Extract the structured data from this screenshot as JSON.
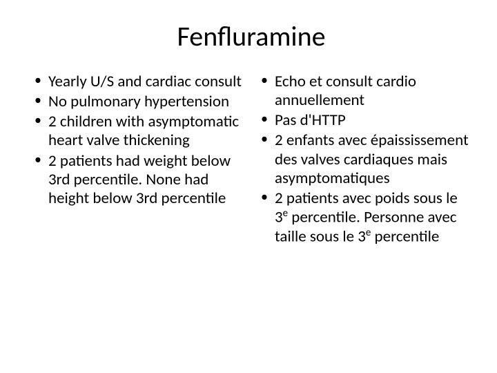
{
  "title": "Fenfluramine",
  "left": {
    "items": [
      "Yearly U/S and cardiac consult",
      "No pulmonary hypertension",
      "2 children with asymptomatic heart valve thickening",
      "2 patients had weight below 3rd percentile. None had height below 3rd percentile"
    ]
  },
  "right": {
    "items": [
      "Echo et consult cardio annuellement",
      "Pas d'HTTP",
      "2 enfants avec épaississement des valves cardiaques mais asymptomatiques",
      "2 patients avec poids sous le 3<sup>e</sup> percentile. Personne avec taille sous le 3<sup>e</sup> percentile"
    ]
  },
  "colors": {
    "background": "#ffffff",
    "text": "#000000"
  },
  "typography": {
    "title_fontsize": 40,
    "body_fontsize": 23,
    "font_family": "Calibri"
  }
}
